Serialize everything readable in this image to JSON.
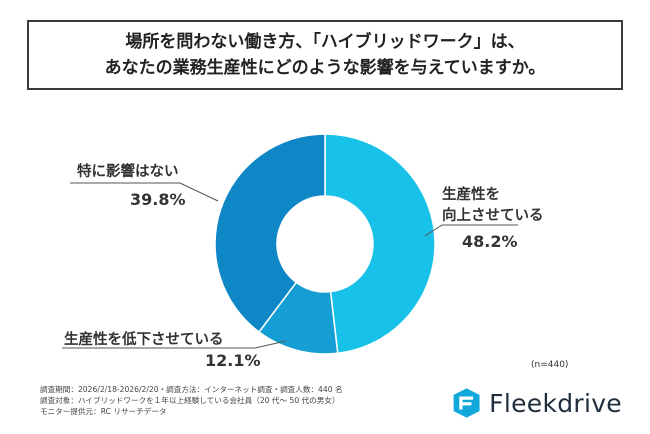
{
  "title": {
    "line1": "場所を問わない働き方、「ハイブリッドワーク」は、",
    "line2": "あなたの業務生産性にどのような影響を与えていますか。"
  },
  "chart_data": {
    "type": "pie",
    "donut": true,
    "categories": [
      "生産性を向上させている",
      "生産性を低下させている",
      "特に影響はない"
    ],
    "values": [
      48.2,
      12.1,
      39.8
    ],
    "value_labels": [
      "48.2%",
      "12.1%",
      "39.8%"
    ],
    "colors": [
      "#17c1e8",
      "#149ed4",
      "#0f86c6"
    ],
    "labels_display": {
      "up_line1": "生産性を",
      "up_line2": "向上させている",
      "down": "生産性を低下させている",
      "none": "特に影響はない"
    }
  },
  "sample_note": "(n=440)",
  "footnotes": [
    "調査期間：2026/2/18-2026/2/20・調査方法：インターネット調査・調査人数：440 名",
    "調査対象：ハイブリッドワークを１年以上経験している会社員（20 代〜 50 代の男女）",
    "モニター提供元：RC リサーチデータ"
  ],
  "logo": {
    "text": "Fleekdrive",
    "icon": "fleekdrive-logo-icon"
  }
}
